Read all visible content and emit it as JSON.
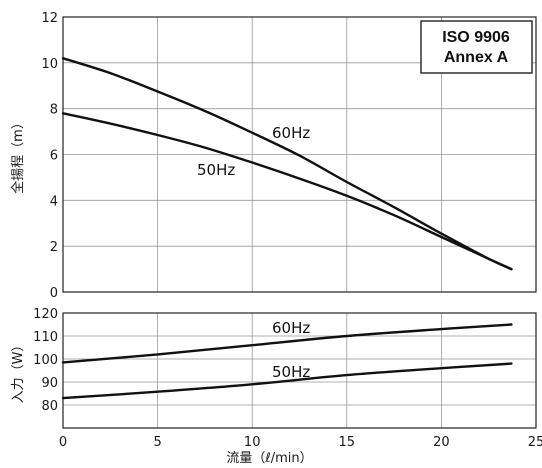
{
  "chart_data": [
    {
      "type": "line",
      "xlim": [
        0,
        25
      ],
      "ylim": [
        0,
        12
      ],
      "xticks": [
        "0",
        "5",
        "10",
        "15",
        "20",
        "25"
      ],
      "yticks": [
        "0",
        "2",
        "4",
        "6",
        "8",
        "10",
        "12"
      ],
      "ylabel": "全揚程（m）",
      "grid": true,
      "annotation": [
        "ISO 9906",
        "Annex A"
      ],
      "series": [
        {
          "name": "60Hz",
          "x": [
            0,
            2.5,
            5,
            7.5,
            10,
            12.5,
            15,
            17.5,
            20,
            22.5,
            23.7
          ],
          "y": [
            10.2,
            9.55,
            8.75,
            7.9,
            6.95,
            5.95,
            4.8,
            3.7,
            2.55,
            1.45,
            1.0
          ]
        },
        {
          "name": "50Hz",
          "x": [
            0,
            2.5,
            5,
            7.5,
            10,
            12.5,
            15,
            17.5,
            20,
            22.5,
            23.7
          ],
          "y": [
            7.8,
            7.35,
            6.85,
            6.3,
            5.65,
            4.95,
            4.2,
            3.35,
            2.4,
            1.45,
            1.0
          ]
        }
      ]
    },
    {
      "type": "line",
      "xlim": [
        0,
        25
      ],
      "ylim": [
        70,
        120
      ],
      "xticks": [
        "0",
        "5",
        "10",
        "15",
        "20",
        "25"
      ],
      "yticks": [
        "80",
        "90",
        "100",
        "110",
        "120"
      ],
      "xlabel": "流量（ℓ/min）",
      "ylabel": "入力（W）",
      "grid": true,
      "series": [
        {
          "name": "60Hz",
          "x": [
            0,
            5,
            10,
            15,
            20,
            23.7
          ],
          "y": [
            98.5,
            102,
            106,
            110,
            113,
            115
          ]
        },
        {
          "name": "50Hz",
          "x": [
            0,
            5,
            10,
            15,
            20,
            23.7
          ],
          "y": [
            83,
            85.8,
            89,
            93,
            96,
            98
          ]
        }
      ]
    }
  ]
}
